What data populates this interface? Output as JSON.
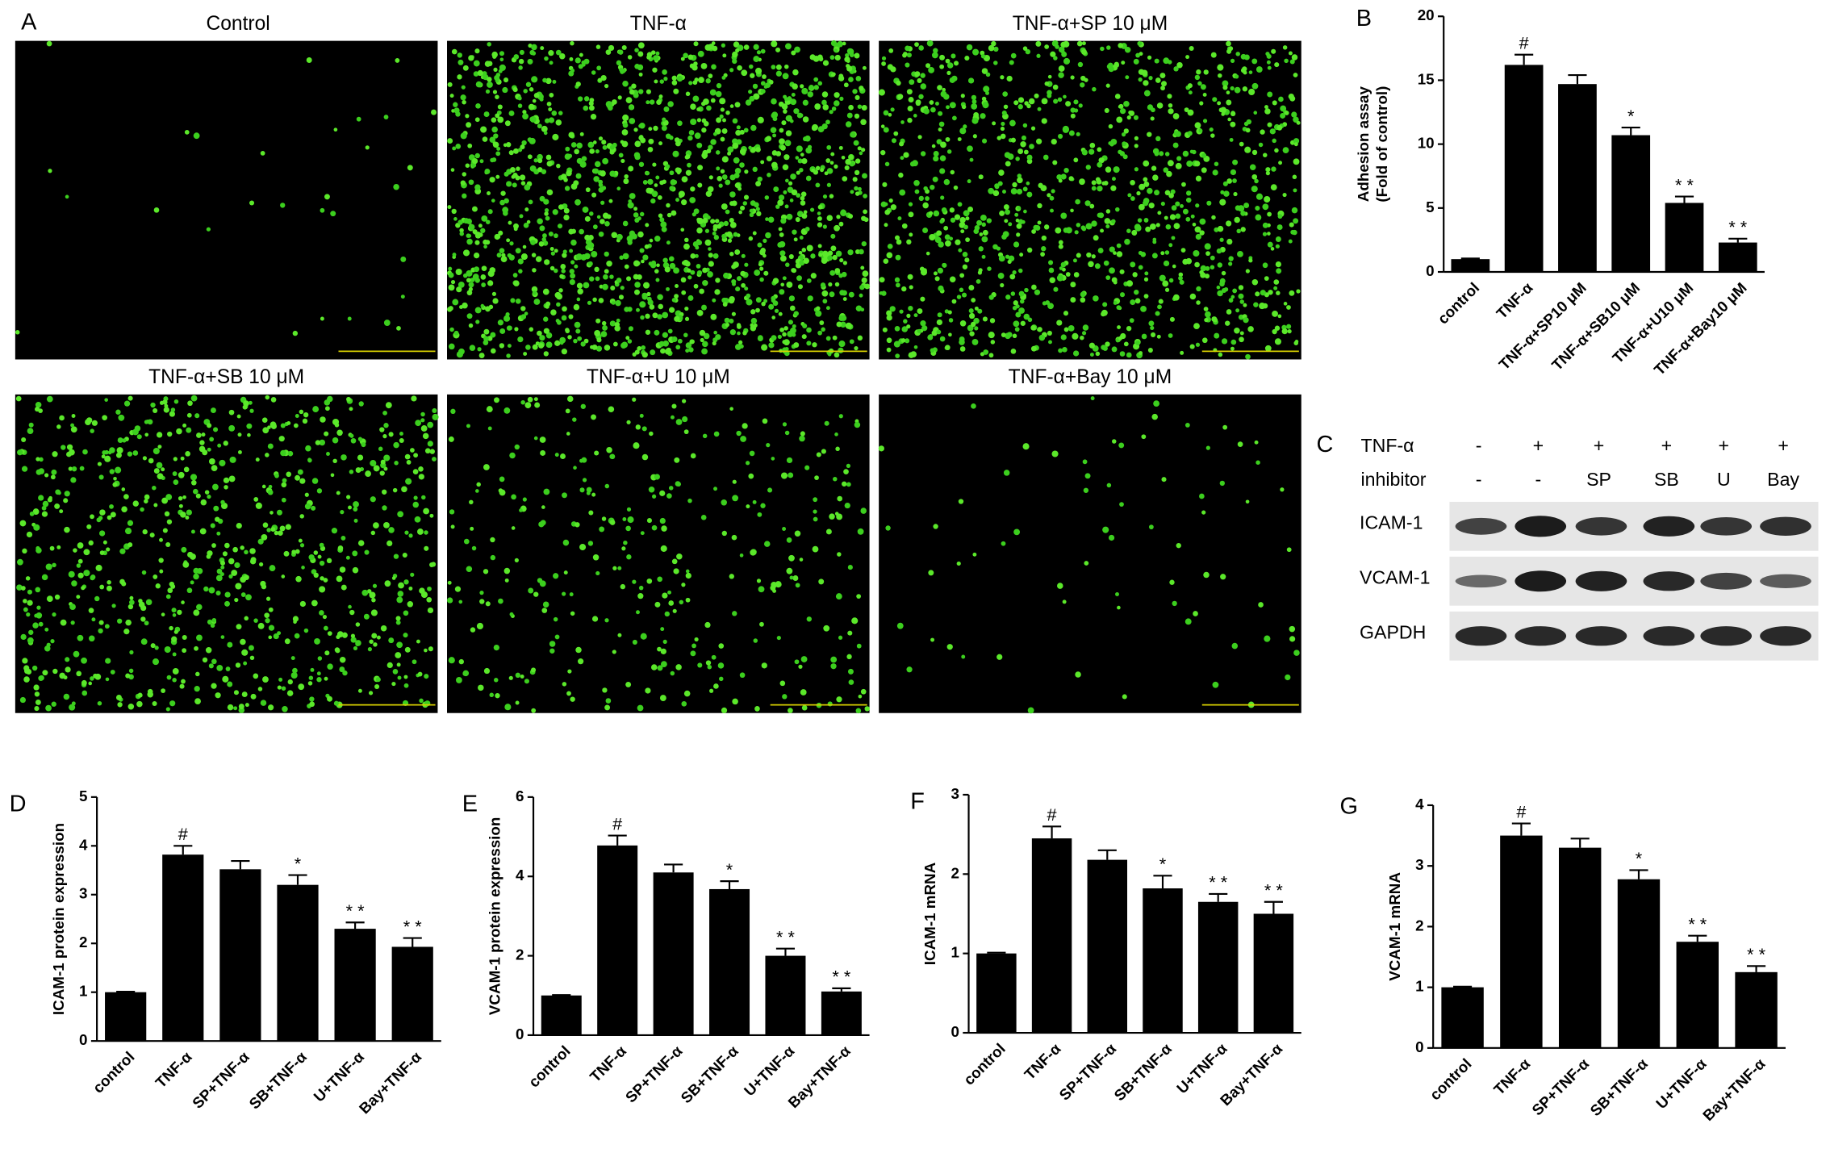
{
  "panel_a": {
    "label": "A",
    "images": [
      "Control",
      "TNF-α",
      "TNF-α+SP 10 μM",
      "TNF-α+SB 10 μM",
      "TNF-α+U 10 μM",
      "TNF-α+Bay 10 μM"
    ]
  },
  "panel_c": {
    "label": "C",
    "rows": [
      {
        "label": "TNF-α",
        "cells": [
          "-",
          "+",
          "+",
          "+",
          "+",
          "+"
        ]
      },
      {
        "label": "inhibitor",
        "cells": [
          "-",
          "-",
          "SP",
          "SB",
          "U",
          "Bay"
        ]
      }
    ],
    "blots": [
      "ICAM-1",
      "VCAM-1",
      "GAPDH"
    ]
  },
  "chart_data": [
    {
      "type": "bar",
      "panel_label": "B",
      "ylabel": [
        "Adhesion assay",
        "(Fold of control)"
      ],
      "categories": [
        "control",
        "TNF-α",
        "TNF-α+SP10 μM",
        "TNF-α+SB10 μM",
        "TNF-α+U10 μM",
        "TNF-α+Bay10 μM"
      ],
      "values": [
        1.0,
        16.2,
        14.7,
        10.7,
        5.4,
        2.3
      ],
      "errors": [
        0.05,
        0.8,
        0.7,
        0.6,
        0.5,
        0.3
      ],
      "annotations": [
        null,
        "#",
        null,
        "*",
        "* *",
        "* *"
      ],
      "color": "#000000",
      "ylim": [
        0,
        20
      ],
      "yticks": [
        0,
        5,
        10,
        15,
        20
      ]
    },
    {
      "type": "bar",
      "panel_label": "D",
      "ylabel": [
        "ICAM-1 protein expression"
      ],
      "categories": [
        "control",
        "TNF-α",
        "SP+TNF-α",
        "SB+TNF-α",
        "U+TNF-α",
        "Bay+TNF-α"
      ],
      "values": [
        1.0,
        3.82,
        3.52,
        3.2,
        2.3,
        1.93
      ],
      "errors": [
        0.01,
        0.18,
        0.17,
        0.2,
        0.13,
        0.18
      ],
      "annotations": [
        null,
        "#",
        null,
        "*",
        "* *",
        "* *"
      ],
      "color": "#000000",
      "ylim": [
        0,
        5
      ],
      "yticks": [
        0,
        1,
        2,
        3,
        4,
        5
      ]
    },
    {
      "type": "bar",
      "panel_label": "E",
      "ylabel": [
        "VCAM-1 protein expression"
      ],
      "categories": [
        "control",
        "TNF-α",
        "SP+TNF-α",
        "SB+TNF-α",
        "U+TNF-α",
        "Bay+TNF-α"
      ],
      "values": [
        1.0,
        4.78,
        4.1,
        3.68,
        2.0,
        1.1
      ],
      "errors": [
        0.01,
        0.25,
        0.2,
        0.2,
        0.18,
        0.08
      ],
      "annotations": [
        null,
        "#",
        null,
        "*",
        "* *",
        "* *"
      ],
      "color": "#000000",
      "ylim": [
        0,
        6
      ],
      "yticks": [
        0,
        2,
        4,
        6
      ]
    },
    {
      "type": "bar",
      "panel_label": "F",
      "ylabel": [
        "ICAM-1 mRNA"
      ],
      "categories": [
        "control",
        "TNF-α",
        "SP+TNF-α",
        "SB+TNF-α",
        "U+TNF-α",
        "Bay+TNF-α"
      ],
      "values": [
        1.0,
        2.45,
        2.18,
        1.82,
        1.65,
        1.5
      ],
      "errors": [
        0.01,
        0.15,
        0.12,
        0.16,
        0.1,
        0.15
      ],
      "annotations": [
        null,
        "#",
        null,
        "*",
        "* *",
        "* *"
      ],
      "color": "#000000",
      "ylim": [
        0,
        3
      ],
      "yticks": [
        0,
        1,
        2,
        3
      ]
    },
    {
      "type": "bar",
      "panel_label": "G",
      "ylabel": [
        "VCAM-1 mRNA"
      ],
      "categories": [
        "control",
        "TNF-α",
        "SP+TNF-α",
        "SB+TNF-α",
        "U+TNF-α",
        "Bay+TNF-α"
      ],
      "values": [
        1.0,
        3.5,
        3.3,
        2.78,
        1.75,
        1.25
      ],
      "errors": [
        0.01,
        0.2,
        0.15,
        0.15,
        0.1,
        0.1
      ],
      "annotations": [
        null,
        "#",
        null,
        "*",
        "* *",
        "* *"
      ],
      "color": "#000000",
      "ylim": [
        0,
        4
      ],
      "yticks": [
        0,
        1,
        2,
        3,
        4
      ]
    }
  ]
}
